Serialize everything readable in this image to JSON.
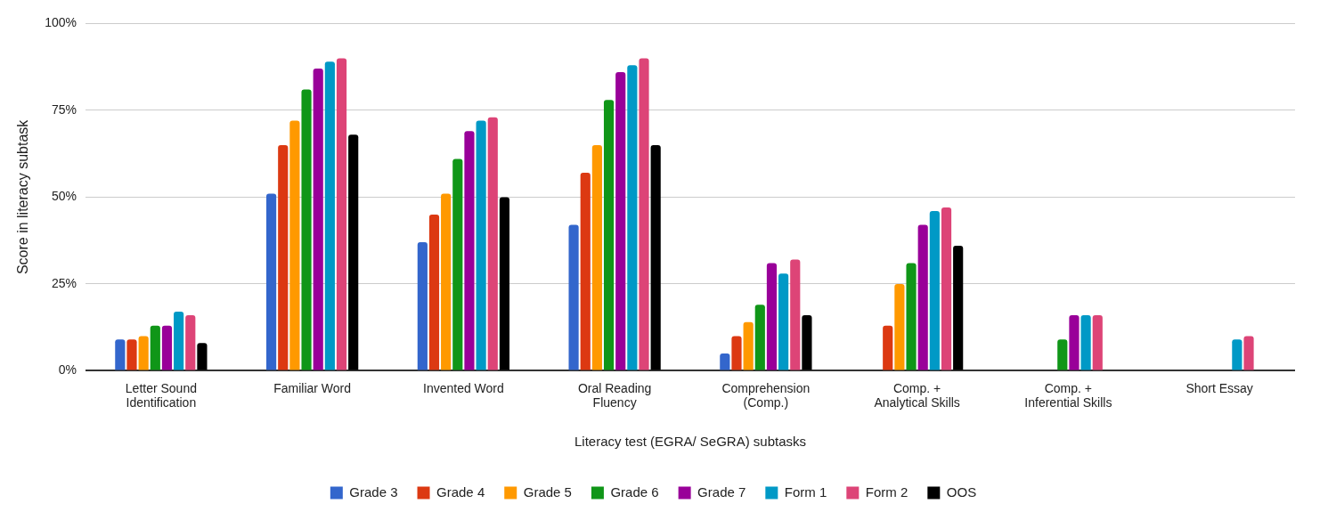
{
  "chart_data": {
    "type": "bar",
    "xlabel": "Literacy test (EGRA/ SeGRA) subtasks",
    "ylabel": "Score in literacy subtask",
    "categories": [
      [
        "Letter Sound",
        "Identification"
      ],
      [
        "Familiar Word"
      ],
      [
        "Invented Word"
      ],
      [
        "Oral Reading",
        "Fluency"
      ],
      [
        "Comprehension",
        "(Comp.)"
      ],
      [
        "Comp. +",
        "Analytical Skills"
      ],
      [
        "Comp. +",
        "Inferential Skills"
      ],
      [
        "Short Essay"
      ]
    ],
    "series": [
      {
        "name": "Grade 3",
        "color": "#3366cc",
        "values": [
          9,
          51,
          37,
          42,
          5,
          null,
          null,
          null
        ]
      },
      {
        "name": "Grade 4",
        "color": "#dc3912",
        "values": [
          9,
          65,
          45,
          57,
          10,
          13,
          null,
          null
        ]
      },
      {
        "name": "Grade 5",
        "color": "#ff9900",
        "values": [
          10,
          72,
          51,
          65,
          14,
          25,
          null,
          null
        ]
      },
      {
        "name": "Grade 6",
        "color": "#109618",
        "values": [
          13,
          81,
          61,
          78,
          19,
          31,
          9,
          null
        ]
      },
      {
        "name": "Grade 7",
        "color": "#990099",
        "values": [
          13,
          87,
          69,
          86,
          31,
          42,
          16,
          null
        ]
      },
      {
        "name": "Form 1",
        "color": "#0099c6",
        "values": [
          17,
          89,
          72,
          88,
          28,
          46,
          16,
          9
        ]
      },
      {
        "name": "Form 2",
        "color": "#dd4477",
        "values": [
          16,
          90,
          73,
          90,
          32,
          47,
          16,
          10
        ]
      },
      {
        "name": "OOS",
        "color": "#000000",
        "values": [
          8,
          68,
          50,
          65,
          16,
          36,
          null,
          null
        ]
      }
    ],
    "ylim": [
      0,
      100
    ],
    "yticks": [
      {
        "value": 0,
        "label": "0%"
      },
      {
        "value": 25,
        "label": "25%"
      },
      {
        "value": 50,
        "label": "50%"
      },
      {
        "value": 75,
        "label": "75%"
      },
      {
        "value": 100,
        "label": "100%"
      }
    ],
    "grid": "y",
    "legend": "bottom"
  }
}
